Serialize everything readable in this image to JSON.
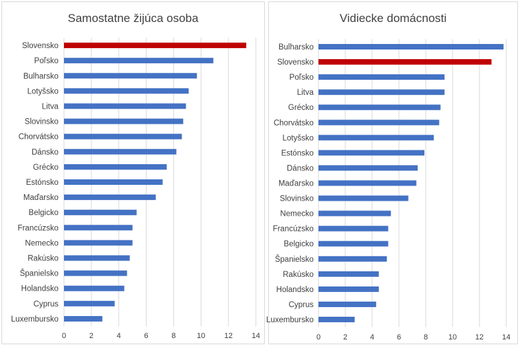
{
  "colors": {
    "bar": "#4472C4",
    "highlight": "#C00000",
    "grid": "#d9d9d9",
    "text": "#404040"
  },
  "chart_data": [
    {
      "type": "bar",
      "orientation": "horizontal",
      "title": "Samostatne žijúca osoba",
      "highlight": "Slovensko",
      "categories": [
        "Slovensko",
        "Poľsko",
        "Bulharsko",
        "Lotyšsko",
        "Litva",
        "Slovinsko",
        "Chorvátsko",
        "Dánsko",
        "Grécko",
        "Estónsko",
        "Maďarsko",
        "Belgicko",
        "Francúzsko",
        "Nemecko",
        "Rakúsko",
        "Španielsko",
        "Holandsko",
        "Cyprus",
        "Luxembursko"
      ],
      "values": [
        13.3,
        10.9,
        9.7,
        9.1,
        8.9,
        8.7,
        8.6,
        8.2,
        7.5,
        7.2,
        6.7,
        5.3,
        5.0,
        5.0,
        4.8,
        4.6,
        4.4,
        3.7,
        2.8
      ],
      "xlim": [
        0,
        14
      ],
      "xticks": [
        "0",
        "2",
        "4",
        "6",
        "8",
        "10",
        "12",
        "14"
      ],
      "xlabel": "",
      "ylabel": ""
    },
    {
      "type": "bar",
      "orientation": "horizontal",
      "title": "Vidiecke domácnosti",
      "highlight": "Slovensko",
      "categories": [
        "Bulharsko",
        "Slovensko",
        "Poľsko",
        "Litva",
        "Grécko",
        "Chorvátsko",
        "Lotyšsko",
        "Estónsko",
        "Dánsko",
        "Maďarsko",
        "Slovinsko",
        "Nemecko",
        "Francúzsko",
        "Belgicko",
        "Španielsko",
        "Rakúsko",
        "Holandsko",
        "Cyprus",
        "Luxembursko"
      ],
      "values": [
        13.8,
        12.9,
        9.4,
        9.4,
        9.1,
        9.0,
        8.6,
        7.9,
        7.4,
        7.3,
        6.7,
        5.4,
        5.2,
        5.2,
        5.1,
        4.5,
        4.5,
        4.3,
        2.7
      ],
      "xlim": [
        0,
        14
      ],
      "xticks": [
        "0",
        "2",
        "4",
        "6",
        "8",
        "10",
        "12",
        "14"
      ],
      "xlabel": "",
      "ylabel": ""
    }
  ]
}
